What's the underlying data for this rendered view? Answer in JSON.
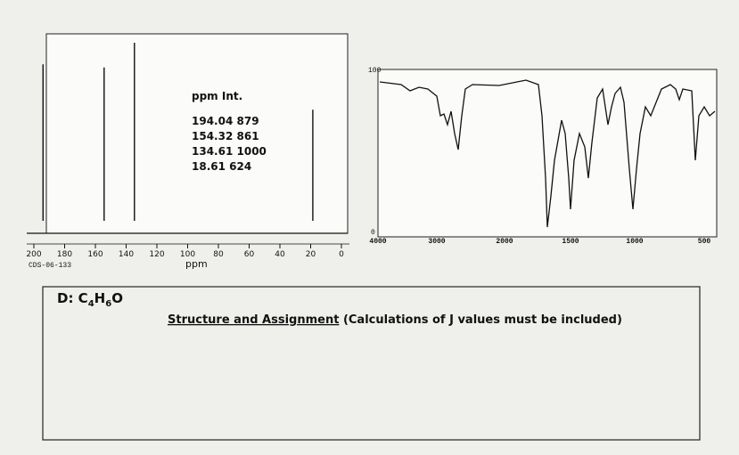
{
  "nmr": {
    "xlim": [
      200,
      0
    ],
    "xticks": [
      200,
      180,
      160,
      140,
      120,
      100,
      80,
      60,
      40,
      20,
      0
    ],
    "xlabel": "ppm",
    "code": "CDS-06-133",
    "table": {
      "header": [
        "ppm",
        "Int."
      ],
      "rows": [
        [
          194.04,
          879
        ],
        [
          154.32,
          861
        ],
        [
          134.61,
          1000
        ],
        [
          18.61,
          624
        ]
      ]
    }
  },
  "ir": {
    "top_label": "100",
    "bottom_label": "0",
    "xticks": [
      "4000",
      "3000",
      "2000",
      "1500",
      "1000",
      "500"
    ]
  },
  "question": {
    "label_parts": [
      "D: C",
      "4",
      "H",
      "6",
      "O"
    ],
    "heading": "Structure and Assignment",
    "note": "(Calculations of J values must be included)"
  }
}
